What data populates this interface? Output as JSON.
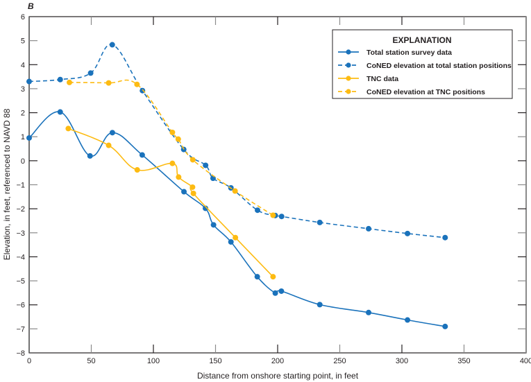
{
  "chart_data": {
    "type": "line",
    "panel_label": "B",
    "title": "",
    "xlabel": "Distance from onshore starting point, in feet",
    "ylabel": "Elevation, in feet, referenced to NAVD 88",
    "xlim": [
      0,
      400
    ],
    "ylim": [
      -8,
      6
    ],
    "xticks": [
      0,
      50,
      100,
      150,
      200,
      250,
      300,
      350,
      400
    ],
    "yticks": [
      -8,
      -7,
      -6,
      -5,
      -4,
      -3,
      -2,
      -1,
      0,
      1,
      2,
      3,
      4,
      5,
      6
    ],
    "xtick_labels": [
      "0",
      "50",
      "100",
      "150",
      "200",
      "250",
      "300",
      "350",
      "400"
    ],
    "ytick_labels": [
      "−8",
      "−7",
      "−6",
      "−5",
      "−4",
      "−3",
      "−2",
      "−1",
      "0",
      "1",
      "2",
      "3",
      "4",
      "5",
      "6"
    ],
    "grid": false,
    "legend": {
      "title": "EXPLANATION",
      "placement": "top-right"
    },
    "series": [
      {
        "name": "Total station survey data",
        "color": "#1a72bb",
        "dashed": false,
        "smooth": true,
        "points": [
          [
            0,
            0.95
          ],
          [
            25,
            2.03
          ],
          [
            49,
            0.2
          ],
          [
            67,
            1.17
          ],
          [
            91,
            0.24
          ],
          [
            124.6,
            -1.29
          ],
          [
            141.9,
            -1.98
          ],
          [
            148.4,
            -2.67
          ],
          [
            162.4,
            -3.38
          ],
          [
            183.6,
            -4.83
          ],
          [
            198.1,
            -5.51
          ],
          [
            203,
            -5.43
          ],
          [
            233.9,
            -5.99
          ],
          [
            273.2,
            -6.32
          ],
          [
            304.5,
            -6.63
          ],
          [
            334.8,
            -6.9
          ]
        ]
      },
      {
        "name": "CoNED elevation at total station positions",
        "color": "#1a72bb",
        "dashed": true,
        "smooth": true,
        "points": [
          [
            0,
            3.3
          ],
          [
            25,
            3.38
          ],
          [
            49.5,
            3.65
          ],
          [
            66.9,
            4.83
          ],
          [
            91.2,
            2.92
          ],
          [
            124.4,
            0.47
          ],
          [
            142,
            -0.19
          ],
          [
            148,
            -0.73
          ],
          [
            162.4,
            -1.13
          ],
          [
            183.8,
            -2.06
          ],
          [
            198.1,
            -2.28
          ],
          [
            203.2,
            -2.32
          ],
          [
            233.9,
            -2.57
          ],
          [
            273.2,
            -2.83
          ],
          [
            304.5,
            -3.03
          ],
          [
            334.8,
            -3.2
          ]
        ]
      },
      {
        "name": "TNC data",
        "color": "#fdbb12",
        "dashed": false,
        "smooth": true,
        "points": [
          [
            31.5,
            1.34
          ],
          [
            64,
            0.64
          ],
          [
            87,
            -0.38
          ],
          [
            115.3,
            -0.11
          ],
          [
            120.3,
            -0.68
          ],
          [
            131.5,
            -1.1
          ],
          [
            132.2,
            -1.36
          ],
          [
            166,
            -3.2
          ],
          [
            196.3,
            -4.83
          ]
        ]
      },
      {
        "name": "CoNED elevation at TNC positions",
        "color": "#fdbb12",
        "dashed": true,
        "smooth": true,
        "points": [
          [
            32.4,
            3.26
          ],
          [
            64,
            3.24
          ],
          [
            86.8,
            3.18
          ],
          [
            115.3,
            1.18
          ],
          [
            120,
            0.9
          ],
          [
            131.7,
            0.04
          ],
          [
            165.7,
            -1.26
          ],
          [
            196.3,
            -2.27
          ]
        ]
      }
    ]
  }
}
